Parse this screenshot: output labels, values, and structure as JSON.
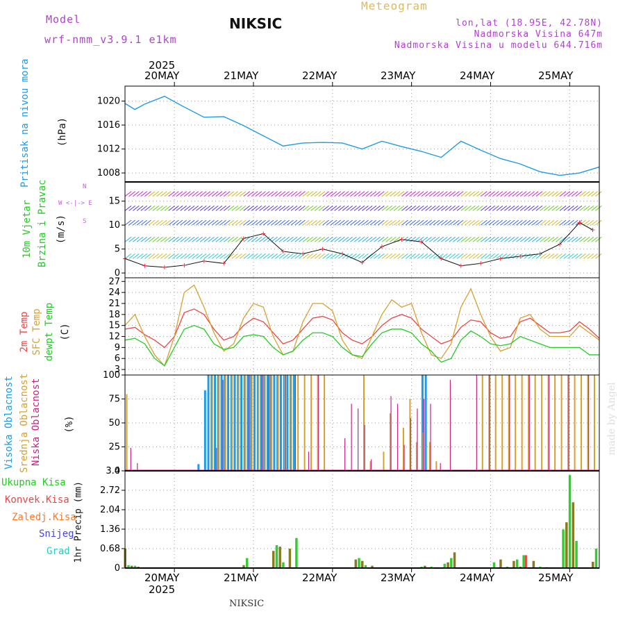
{
  "header": {
    "model_label": "Model",
    "model_name": "wrf-nmm_v3.9.1 e1km",
    "station": "NIKSIC",
    "meteogram": "Meteogram",
    "lonlat": "lon,lat (18.95E, 42.78N)",
    "elevation": "Nadmorska Visina 647m",
    "model_elevation": "Nadmorska Visina u modelu 644.716m"
  },
  "top_axis": {
    "year": "2025",
    "dates": [
      "20MAY",
      "21MAY",
      "22MAY",
      "23MAY",
      "24MAY",
      "25MAY"
    ]
  },
  "bottom_axis": {
    "year": "2025",
    "dates": [
      "20MAY",
      "21MAY",
      "22MAY",
      "23MAY",
      "24MAY",
      "25MAY"
    ]
  },
  "footer": {
    "station": "NIKSIC",
    "credit": "made by Angel"
  },
  "colors": {
    "pressure": "#1e9be6",
    "t2m": "#ee4444",
    "sfc": "#d8a030",
    "dew": "#22cc22",
    "high": "#1e9be6",
    "mid": "#d8a030",
    "low": "#cc2288",
    "rain": "#33cc33",
    "conv": "#ee4444",
    "frz": "#ff7722",
    "snow": "#4444ee",
    "grad": "#22cccc",
    "brown": "#8a7a22"
  },
  "panels": {
    "pressure": {
      "label": "Pritisak na nivou mora",
      "unit": "(hPa)",
      "ticks": [
        "1008",
        "1012",
        "1016",
        "1020"
      ]
    },
    "wind": {
      "label1": "10m Vjetar",
      "label2": "Brzina i Pravac",
      "unit": "(m/s)",
      "ticks": [
        "0",
        "5",
        "10",
        "15"
      ],
      "legend_n": "N",
      "legend_s": "S",
      "legend_row": "W  <-|->  E"
    },
    "temp": {
      "label1": "2m Temp",
      "label2": "SFC Temp",
      "label3": "dewpt Temp",
      "unit": "(C)",
      "ticks": [
        "3",
        "6",
        "9",
        "12",
        "15",
        "18",
        "21",
        "24",
        "27"
      ]
    },
    "cloud": {
      "label1": "Visoka Oblacnost",
      "label2": "Srednja Oblacnost",
      "label3": "Niska Oblacnost",
      "unit": "(%)",
      "ticks": [
        "0",
        "25",
        "50",
        "75",
        "100"
      ]
    },
    "precip": {
      "labels": [
        "Ukupna Kisa",
        "Konvek.Kisa",
        "Zaledj.Kisa",
        "Snijeg",
        "Grad"
      ],
      "unit": "1hr Precip (mm)",
      "ticks": [
        "0",
        "0.68",
        "1.36",
        "2.04",
        "2.72",
        "3.4"
      ]
    }
  },
  "chart_data": [
    {
      "type": "line",
      "title": "",
      "ylabel": "Pritisak na nivou mora (hPa)",
      "ylim": [
        1006.5,
        1022.5
      ],
      "x": [
        0,
        3,
        6,
        12,
        18,
        24,
        30,
        36,
        42,
        48,
        54,
        60,
        66,
        72,
        78,
        84,
        90,
        96,
        102,
        108,
        114,
        120,
        126,
        132,
        138,
        144
      ],
      "series": [
        {
          "name": "",
          "values": [
            1019.6,
            1018.6,
            1019.5,
            1020.8,
            1019.0,
            1017.3,
            1017.4,
            1015.9,
            1014.2,
            1012.5,
            1013.0,
            1013.1,
            1013.0,
            1012.0,
            1013.3,
            1012.4,
            1011.6,
            1010.6,
            1013.3,
            1011.8,
            1010.4,
            1009.5,
            1008.2,
            1007.6,
            1008.0,
            1009.0
          ]
        }
      ]
    },
    {
      "type": "scatter",
      "title": "",
      "ylabel": "10m Vjetar Brzina i Pravac (m/s)",
      "ylim": [
        -1,
        19
      ],
      "x": [
        0,
        6,
        12,
        18,
        24,
        30,
        36,
        42,
        48,
        54,
        60,
        66,
        72,
        78,
        84,
        90,
        96,
        102,
        108,
        114,
        120,
        126,
        132,
        138,
        142
      ],
      "series": [
        {
          "name": "",
          "values": [
            3.0,
            1.5,
            1.2,
            1.6,
            2.5,
            2.0,
            7.2,
            8.2,
            4.5,
            4.0,
            5.0,
            4.0,
            2.2,
            5.5,
            7.0,
            6.5,
            3.0,
            1.5,
            2.0,
            3.0,
            3.5,
            4.0,
            6.0,
            10.5,
            9.0
          ]
        }
      ]
    },
    {
      "type": "line",
      "title": "",
      "ylabel": "Temp (C)",
      "ylim": [
        1.5,
        28
      ],
      "x": [
        0,
        3,
        6,
        9,
        12,
        15,
        18,
        21,
        24,
        27,
        30,
        33,
        36,
        39,
        42,
        45,
        48,
        51,
        54,
        57,
        60,
        63,
        66,
        69,
        72,
        75,
        78,
        81,
        84,
        87,
        90,
        93,
        96,
        99,
        102,
        105,
        108,
        111,
        114,
        117,
        120,
        123,
        126,
        129,
        132,
        135,
        138,
        141,
        144
      ],
      "series": [
        {
          "name": "2m Temp",
          "values": [
            14,
            14.5,
            12.5,
            11,
            9,
            12,
            18.5,
            19.5,
            18,
            14,
            11,
            12,
            15,
            17,
            16,
            13,
            10,
            11,
            14,
            17,
            17.5,
            16.5,
            13,
            11,
            10,
            12,
            15,
            17,
            18,
            17,
            14,
            12,
            10,
            11,
            14.5,
            16.5,
            16,
            13,
            11.5,
            12,
            16,
            17,
            15,
            13,
            13,
            13.5,
            16,
            14,
            11.5
          ]
        },
        {
          "name": "SFC Temp",
          "values": [
            15,
            18,
            12,
            7,
            4,
            12,
            24,
            26,
            20,
            13,
            8,
            10,
            17,
            21,
            20,
            12,
            7,
            8,
            16,
            21,
            21,
            19,
            11,
            7,
            6,
            12,
            18,
            22,
            20,
            21,
            13,
            7,
            6,
            10,
            20,
            25,
            18,
            12,
            8,
            9,
            17,
            18,
            14,
            12,
            12,
            12,
            15,
            13,
            11
          ]
        },
        {
          "name": "dewpt Temp",
          "values": [
            11,
            11.5,
            10,
            6,
            4,
            9,
            14,
            15,
            14,
            10,
            8.5,
            9,
            12,
            12.5,
            12,
            9,
            7,
            8,
            11,
            13,
            13,
            12,
            9,
            7,
            6.5,
            10,
            13,
            14,
            14,
            13,
            10,
            8,
            5,
            6,
            11,
            13.5,
            12,
            10,
            9.5,
            10,
            12,
            11,
            10,
            9,
            9,
            9,
            9,
            7,
            7
          ]
        }
      ]
    },
    {
      "type": "bar",
      "title": "",
      "ylabel": "Oblacnost (%)",
      "ylim": [
        0,
        100
      ],
      "series": [
        {
          "name": "Visoka Oblacnost",
          "x": [
            18,
            20,
            22,
            24,
            25,
            26,
            27,
            28,
            29,
            30,
            31,
            32,
            33,
            34,
            35,
            36,
            37,
            38,
            39,
            40,
            41,
            42,
            43,
            44,
            45,
            46,
            47,
            48,
            49,
            50,
            51,
            52,
            53,
            54,
            55,
            56,
            57,
            58,
            59,
            60,
            61,
            62,
            63,
            64,
            65,
            66,
            67,
            68,
            69,
            70,
            71,
            72,
            73,
            74,
            75,
            76,
            77,
            78,
            79,
            80,
            81,
            82,
            83,
            84,
            85,
            86,
            87,
            88,
            89,
            90,
            91,
            92,
            93,
            94,
            95,
            96,
            97,
            98,
            99,
            100,
            101,
            102,
            103,
            104,
            105,
            106,
            107,
            108,
            109,
            110,
            111,
            112,
            113,
            114,
            115,
            116,
            117,
            118,
            119,
            120,
            121,
            122,
            123,
            124,
            125,
            126,
            127,
            128,
            129,
            130,
            131,
            132,
            133,
            134,
            135,
            136,
            137,
            138,
            139,
            140,
            141,
            142,
            143
          ],
          "values": [
            0,
            0,
            7,
            84,
            100,
            100,
            100,
            100,
            100,
            100,
            100,
            100,
            100,
            100,
            100,
            100,
            100,
            100,
            100,
            100,
            100,
            100,
            100,
            100,
            100,
            100,
            100,
            100,
            100,
            100,
            100,
            0,
            0,
            0,
            0,
            0,
            0,
            0,
            0,
            0,
            0,
            0,
            0,
            0,
            0,
            0,
            0,
            0,
            0,
            0,
            0,
            0,
            0,
            0,
            0,
            0,
            0,
            0,
            0,
            0,
            0,
            0,
            0,
            0,
            0,
            0,
            0,
            0,
            0,
            100,
            100,
            0,
            0,
            0,
            0,
            0,
            0,
            0,
            0,
            0,
            0,
            0,
            0,
            0,
            0,
            0,
            0,
            0,
            0,
            0,
            0,
            0,
            0,
            0,
            0,
            0,
            0,
            0,
            0,
            0,
            0,
            0,
            0,
            0,
            0,
            0,
            0,
            0,
            0,
            0,
            0,
            0,
            0,
            0,
            0,
            0,
            0,
            0,
            0,
            0,
            0,
            0,
            0
          ]
        },
        {
          "name": "Srednja Oblacnost",
          "x": [
            0,
            26,
            28,
            30,
            32,
            34,
            36,
            38,
            40,
            42,
            44,
            46,
            48,
            50,
            52,
            54,
            56,
            58,
            60,
            70,
            72,
            74,
            78,
            80,
            84,
            86,
            88,
            90,
            92,
            94,
            96,
            108,
            110,
            112,
            114,
            116,
            118,
            120,
            122,
            124,
            126,
            128,
            130,
            132,
            134,
            136,
            138,
            140,
            142
          ],
          "values": [
            80,
            100,
            100,
            100,
            100,
            100,
            100,
            100,
            100,
            100,
            100,
            100,
            100,
            100,
            100,
            100,
            100,
            100,
            100,
            0,
            100,
            10,
            20,
            60,
            45,
            75,
            30,
            40,
            30,
            10,
            0,
            100,
            100,
            100,
            100,
            100,
            100,
            100,
            100,
            100,
            100,
            100,
            100,
            100,
            100,
            100,
            100,
            100,
            100
          ]
        },
        {
          "name": "Niska Oblacnost",
          "x": [
            1,
            3,
            27,
            29,
            37,
            41,
            43,
            48,
            51,
            55,
            58,
            66,
            68,
            70,
            72,
            74,
            80,
            82,
            84,
            86,
            88,
            90,
            92,
            95,
            98,
            106,
            110,
            116,
            122,
            128,
            134,
            140
          ],
          "values": [
            24,
            8,
            24,
            95,
            100,
            100,
            100,
            100,
            100,
            20,
            100,
            34,
            70,
            65,
            48,
            12,
            78,
            70,
            27,
            55,
            65,
            75,
            70,
            8,
            95,
            100,
            100,
            100,
            100,
            100,
            100,
            100
          ]
        }
      ]
    },
    {
      "type": "bar",
      "title": "",
      "ylabel": "1hr Precip (mm)",
      "ylim": [
        0,
        3.4
      ],
      "x": [
        0,
        1,
        2,
        3,
        4,
        5,
        36,
        37,
        45,
        46,
        47,
        48,
        50,
        52,
        70,
        71,
        72,
        73,
        75,
        90,
        91,
        93,
        95,
        97,
        98,
        99,
        100,
        112,
        114,
        116,
        118,
        119,
        120,
        121,
        124,
        126,
        128,
        133,
        134,
        135,
        136,
        137,
        142,
        143
      ],
      "series": [
        {
          "name": "Ukupna Kisa",
          "values": [
            0.68,
            0.1,
            0.08,
            0.08,
            0.05,
            0.02,
            0.1,
            0.35,
            0.6,
            0.8,
            0.75,
            0.2,
            0.68,
            1.05,
            0.3,
            0.35,
            0.25,
            0.1,
            0.08,
            0.05,
            0.08,
            0.05,
            0.02,
            0.15,
            0.2,
            0.35,
            0.55,
            0.2,
            0.3,
            0.05,
            0.25,
            0.3,
            0.05,
            0.45,
            0.25,
            0.05,
            0.03,
            1.35,
            1.6,
            3.25,
            2.3,
            0.95,
            0.22,
            0.68
          ]
        },
        {
          "name": "Konvek.Kisa",
          "values": [
            0,
            0,
            0,
            0,
            0,
            0,
            0,
            0,
            0,
            0,
            0,
            0,
            0,
            0,
            0,
            0,
            0,
            0,
            0,
            0,
            0,
            0,
            0,
            0,
            0,
            0,
            0,
            0,
            0,
            0,
            0,
            0,
            0,
            0.45,
            0,
            0,
            0,
            0,
            0,
            0,
            0,
            0,
            0,
            0
          ]
        }
      ]
    }
  ]
}
